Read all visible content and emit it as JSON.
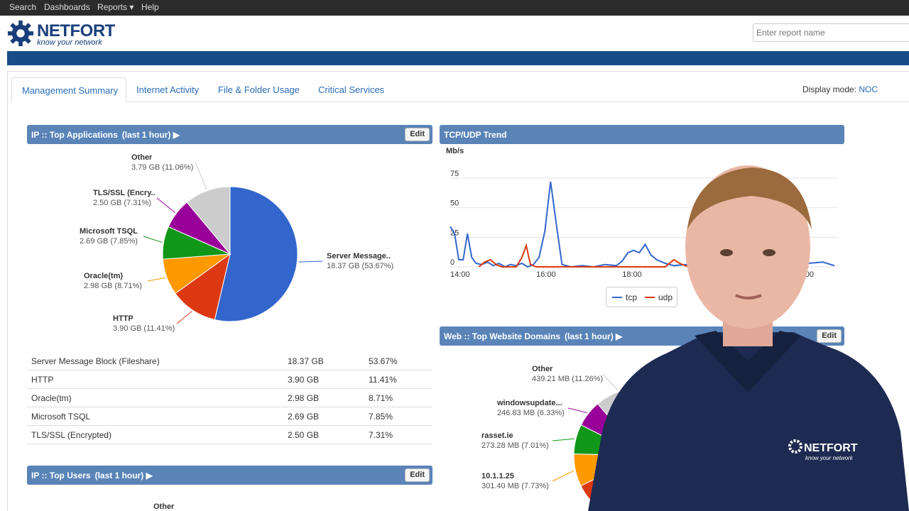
{
  "nav": {
    "items": [
      "Search",
      "Dashboards",
      "Reports ▾",
      "Help"
    ]
  },
  "logo": {
    "name": "NETFORT",
    "tagline": "know your network"
  },
  "search": {
    "placeholder": "Enter report name"
  },
  "tabs": [
    "Management Summary",
    "Internet Activity",
    "File & Folder Usage",
    "Critical Services"
  ],
  "display_mode": {
    "label": "Display mode:",
    "value": "NOC"
  },
  "edit_label": "Edit",
  "colors": {
    "accent": "#174d87",
    "panel_header": "#5a84b8",
    "link": "#2a6db5"
  },
  "panels": {
    "top_apps": {
      "title": "IP :: Top Applications",
      "period": "(last 1 hour) ▶"
    },
    "trend": {
      "title": "TCP/UDP Trend"
    },
    "web_domains": {
      "title": "Web :: Top Website Domains",
      "period": "(last 1 hour) ▶"
    },
    "top_users": {
      "title": "IP :: Top Users",
      "period": "(last 1 hour) ▶",
      "first_label": "Other"
    }
  },
  "chart_data": [
    {
      "type": "pie",
      "name": "IP :: Top Applications",
      "slices": [
        {
          "label": "Server Message..",
          "value": "18.37 GB (53.67%)",
          "percent": 53.67,
          "color": "#3366cc"
        },
        {
          "label": "HTTP",
          "value": "3.90 GB (11.41%)",
          "percent": 11.41,
          "color": "#dc3912"
        },
        {
          "label": "Oracle(tm)",
          "value": "2.98 GB (8.71%)",
          "percent": 8.71,
          "color": "#ff9900"
        },
        {
          "label": "Microsoft TSQL",
          "value": "2.69 GB (7.85%)",
          "percent": 7.85,
          "color": "#109618"
        },
        {
          "label": "TLS/SSL (Encry..",
          "value": "2.50 GB (7.31%)",
          "percent": 7.31,
          "color": "#990099"
        },
        {
          "label": "Other",
          "value": "3.79 GB (11.06%)",
          "percent": 11.06,
          "color": "#cccccc"
        }
      ]
    },
    {
      "type": "line",
      "name": "TCP/UDP Trend",
      "ylabel": "Mb/s",
      "yticks": [
        "0",
        "25",
        "50",
        "75"
      ],
      "ylim": [
        0,
        90
      ],
      "xlim": [
        0,
        270
      ],
      "xticks": [
        {
          "label": "14:00",
          "x": 0
        },
        {
          "label": "16:00",
          "x": 60
        },
        {
          "label": "18:00",
          "x": 120
        },
        {
          "label": "20:00",
          "x": 240
        }
      ],
      "series": [
        {
          "name": "tcp",
          "color": "#3366cc",
          "points": [
            [
              0,
              34
            ],
            [
              3,
              28
            ],
            [
              6,
              6
            ],
            [
              9,
              6
            ],
            [
              12,
              28
            ],
            [
              15,
              8
            ],
            [
              18,
              3
            ],
            [
              22,
              2
            ],
            [
              26,
              4
            ],
            [
              30,
              1
            ],
            [
              34,
              3
            ],
            [
              38,
              0
            ],
            [
              42,
              2
            ],
            [
              46,
              1
            ],
            [
              50,
              3
            ],
            [
              54,
              0
            ],
            [
              58,
              2
            ],
            [
              62,
              8
            ],
            [
              66,
              30
            ],
            [
              70,
              72
            ],
            [
              74,
              36
            ],
            [
              78,
              2
            ],
            [
              84,
              0
            ],
            [
              92,
              1
            ],
            [
              100,
              0
            ],
            [
              108,
              2
            ],
            [
              116,
              1
            ],
            [
              120,
              5
            ],
            [
              124,
              12
            ],
            [
              128,
              14
            ],
            [
              132,
              12
            ],
            [
              136,
              19
            ],
            [
              140,
              10
            ],
            [
              144,
              6
            ],
            [
              150,
              3
            ],
            [
              156,
              1
            ],
            [
              164,
              2
            ],
            [
              170,
              1
            ],
            [
              176,
              3
            ],
            [
              182,
              1
            ],
            [
              190,
              2
            ],
            [
              200,
              3
            ],
            [
              210,
              1
            ],
            [
              220,
              2
            ],
            [
              230,
              4
            ],
            [
              240,
              2
            ],
            [
              250,
              3
            ],
            [
              260,
              4
            ],
            [
              268,
              1
            ]
          ]
        },
        {
          "name": "udp",
          "color": "#dc3912",
          "points": [
            [
              20,
              0
            ],
            [
              24,
              4
            ],
            [
              28,
              6
            ],
            [
              32,
              2
            ],
            [
              36,
              0
            ],
            [
              46,
              0
            ],
            [
              50,
              8
            ],
            [
              53,
              18
            ],
            [
              56,
              2
            ],
            [
              60,
              0
            ],
            [
              150,
              0
            ],
            [
              156,
              6
            ],
            [
              160,
              3
            ],
            [
              166,
              0
            ]
          ]
        }
      ]
    },
    {
      "type": "pie",
      "name": "Web :: Top Website Domains",
      "slices": [
        {
          "label": "Other",
          "value": "439.21 MB (11.26%)",
          "percent": 11.26,
          "color": "#cccccc"
        },
        {
          "label": "windowsupdate...",
          "value": "246.83 MB (6.33%)",
          "percent": 6.33,
          "color": "#990099"
        },
        {
          "label": "rasset.ie",
          "value": "273.28 MB (7.01%)",
          "percent": 7.01,
          "color": "#109618"
        },
        {
          "label": "10.1.1.25",
          "value": "301.40 MB (7.73%)",
          "percent": 7.73,
          "color": "#ff9900"
        }
      ]
    }
  ],
  "table": {
    "rows": [
      [
        "Server Message Block (Fileshare)",
        "18.37 GB",
        "53.67%"
      ],
      [
        "HTTP",
        "3.90 GB",
        "11.41%"
      ],
      [
        "Oracle(tm)",
        "2.98 GB",
        "8.71%"
      ],
      [
        "Microsoft TSQL",
        "2.69 GB",
        "7.85%"
      ],
      [
        "TLS/SSL (Encrypted)",
        "2.50 GB",
        "7.31%"
      ]
    ]
  },
  "overlay": {
    "shirt_logo": "NETFORT",
    "shirt_tagline": "know your network"
  }
}
